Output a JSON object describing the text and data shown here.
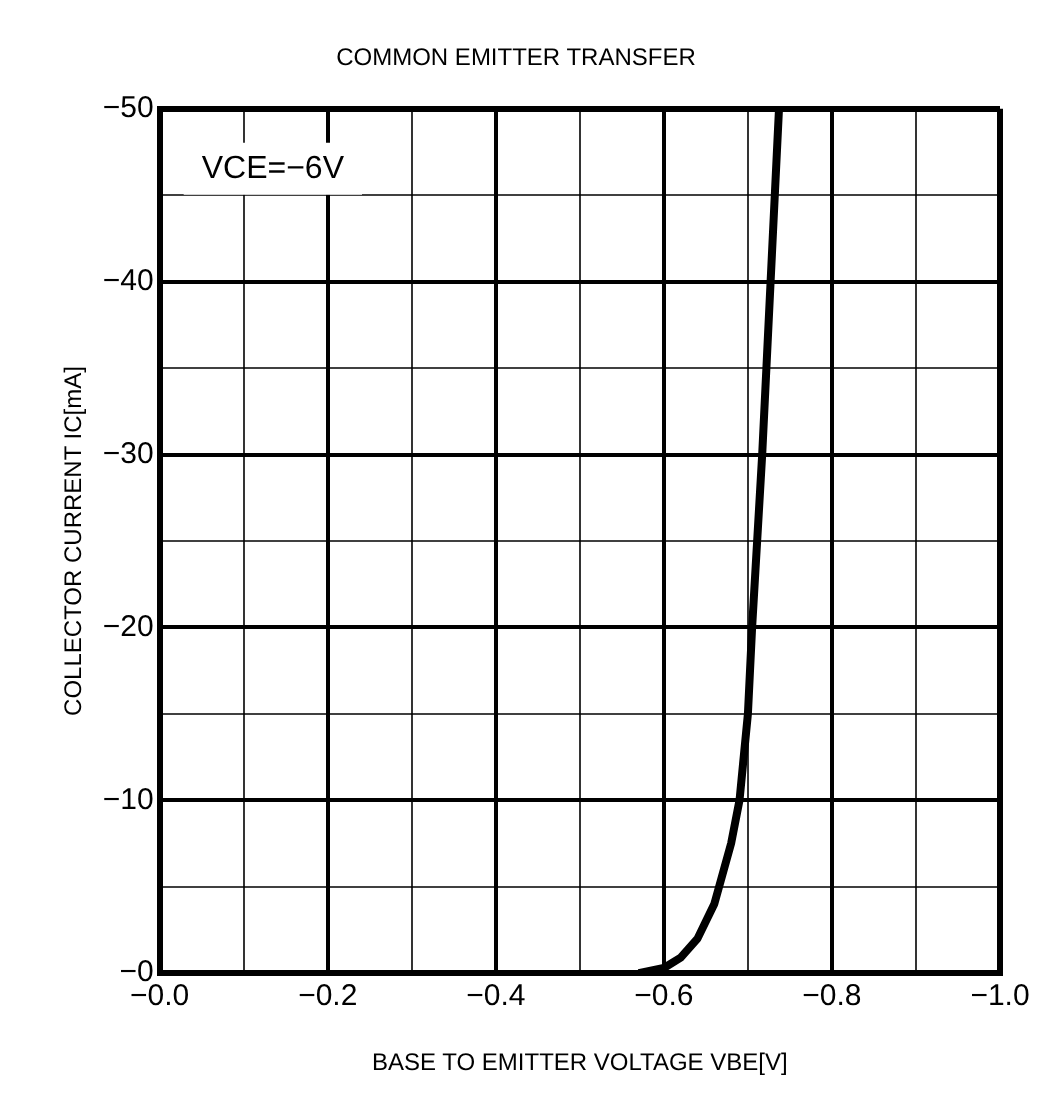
{
  "chart_data": {
    "type": "line",
    "title": "COMMON EMITTER TRANSFER",
    "xlabel": "BASE TO EMITTER VOLTAGE VBE[V]",
    "ylabel": "COLLECTOR CURRENT IC[mA]",
    "annotations": [
      "VCE=−6V"
    ],
    "x": [
      -0.57,
      -0.6,
      -0.62,
      -0.64,
      -0.66,
      -0.68,
      -0.69,
      -0.7,
      -0.705,
      -0.717,
      -0.727,
      -0.737
    ],
    "series": [
      {
        "color": "#000000",
        "values": [
          0,
          -0.3,
          -0.9,
          -2,
          -4,
          -7.5,
          -10,
          -15,
          -20,
          -30,
          -40,
          -50
        ]
      }
    ],
    "xlim": [
      0,
      -1
    ],
    "ylim": [
      0,
      -50
    ],
    "xticks": [
      {
        "value": 0,
        "label": "−0.0"
      },
      {
        "value": -0.1,
        "label": null
      },
      {
        "value": -0.2,
        "label": "−0.2"
      },
      {
        "value": -0.3,
        "label": null
      },
      {
        "value": -0.4,
        "label": "−0.4"
      },
      {
        "value": -0.5,
        "label": null
      },
      {
        "value": -0.6,
        "label": "−0.6"
      },
      {
        "value": -0.7,
        "label": null
      },
      {
        "value": -0.8,
        "label": "−0.8"
      },
      {
        "value": -0.9,
        "label": null
      },
      {
        "value": -1,
        "label": "−1.0"
      }
    ],
    "yticks": [
      {
        "value": 0,
        "label": "−0"
      },
      {
        "value": -5,
        "label": null
      },
      {
        "value": -10,
        "label": "−10"
      },
      {
        "value": -15,
        "label": null
      },
      {
        "value": -20,
        "label": "−20"
      },
      {
        "value": -25,
        "label": null
      },
      {
        "value": -30,
        "label": "−30"
      },
      {
        "value": -35,
        "label": null
      },
      {
        "value": -40,
        "label": "−40"
      },
      {
        "value": -45,
        "label": null
      },
      {
        "value": -50,
        "label": "−50"
      }
    ],
    "grid": true,
    "marker": "none",
    "line_style": "solid",
    "legend": false
  }
}
